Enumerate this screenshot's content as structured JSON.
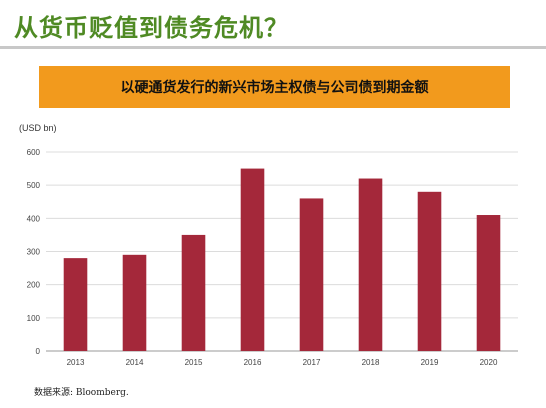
{
  "slide_title": "从货币贬值到债务危机？",
  "banner": "以硬通货发行的新兴市场主权债与公司债到期金额",
  "source": "数据来源: Bloomberg.",
  "colors": {
    "title": "#4f8a24",
    "banner": "#f29a1d",
    "bar": "#a4283a",
    "grid": "#dcdcdc"
  },
  "chart_data": {
    "type": "bar",
    "unit_label": "(USD bn)",
    "categories": [
      "2013",
      "2014",
      "2015",
      "2016",
      "2017",
      "2018",
      "2019",
      "2020"
    ],
    "values": [
      280,
      290,
      350,
      550,
      460,
      520,
      480,
      410
    ],
    "ylim": [
      0,
      600
    ],
    "yticks": [
      0,
      100,
      200,
      300,
      400,
      500,
      600
    ],
    "grid": true,
    "legend": "none"
  }
}
